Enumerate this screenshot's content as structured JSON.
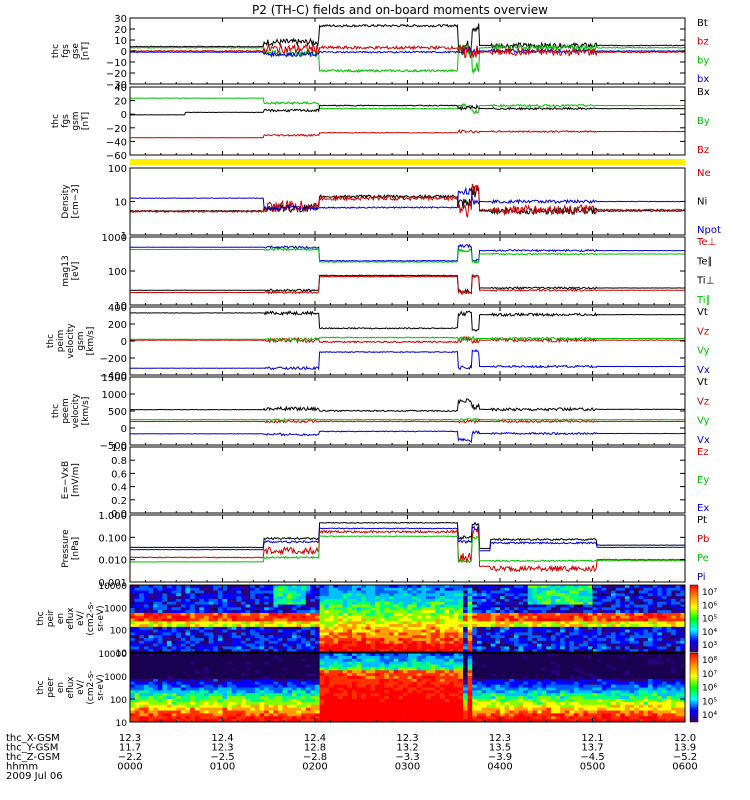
{
  "title": "P2 (TH-C) fields and on-board moments overview",
  "chart_data": {
    "type": "line",
    "x_range": [
      0,
      6
    ],
    "x_ticks": [
      0,
      1,
      2,
      3,
      4,
      5,
      6
    ],
    "panels": [
      {
        "id": "fgs_gse",
        "ylabel": [
          "thc",
          "fgs",
          "gse",
          "[nT]"
        ],
        "yticks": [
          "30",
          "20",
          "10",
          "0",
          "−10",
          "−20",
          "−30"
        ],
        "legend": [
          {
            "name": "Bt",
            "color": "#000000"
          },
          {
            "name": "bz",
            "color": "#cc0000"
          },
          {
            "name": "by",
            "color": "#00c000"
          },
          {
            "name": "bx",
            "color": "#0000cc"
          }
        ]
      },
      {
        "id": "fgs_gsm",
        "ylabel": [
          "thc",
          "fgs",
          "gsm",
          "[nT]"
        ],
        "yticks": [
          "40",
          "20",
          "0",
          "−20",
          "−40",
          "−60"
        ],
        "legend": [
          {
            "name": "Bx",
            "color": "#000000"
          },
          {
            "name": "By",
            "color": "#00c000"
          },
          {
            "name": "Bz",
            "color": "#cc0000"
          }
        ]
      },
      {
        "id": "density",
        "ylabel": [
          "Density",
          "[cm−3]"
        ],
        "yticks": [
          "100",
          "10",
          "1"
        ],
        "legend": [
          {
            "name": "Ne",
            "color": "#cc0000"
          },
          {
            "name": "Ni",
            "color": "#000000"
          },
          {
            "name": "Npot",
            "color": "#0000cc"
          }
        ]
      },
      {
        "id": "temperature",
        "ylabel": [
          "mag13",
          "[eV]"
        ],
        "yticks": [
          "1000",
          "100",
          "10"
        ],
        "legend": [
          {
            "name": "Te⊥",
            "color": "#cc0000"
          },
          {
            "name": "Te∥",
            "color": "#000000"
          },
          {
            "name": "Ti⊥",
            "color": "#000000"
          },
          {
            "name": "Ti∥",
            "color": "#00c000"
          }
        ]
      },
      {
        "id": "peim_velocity",
        "ylabel": [
          "thc",
          "peim",
          "velocity",
          "gsm",
          "[km/s]"
        ],
        "yticks": [
          "400",
          "200",
          "0",
          "−200",
          "−400"
        ],
        "legend": [
          {
            "name": "Vt",
            "color": "#000000"
          },
          {
            "name": "Vz",
            "color": "#cc0000"
          },
          {
            "name": "Vy",
            "color": "#00c000"
          },
          {
            "name": "Vx",
            "color": "#0000cc"
          }
        ]
      },
      {
        "id": "peem_velocity",
        "ylabel": [
          "thc",
          "peem",
          "velocity",
          "[km/s]"
        ],
        "yticks": [
          "1500",
          "1000",
          "500",
          "0",
          "−500"
        ],
        "legend": [
          {
            "name": "Vt",
            "color": "#000000"
          },
          {
            "name": "Vz",
            "color": "#cc0000"
          },
          {
            "name": "Vy",
            "color": "#00c000"
          },
          {
            "name": "Vx",
            "color": "#0000cc"
          }
        ]
      },
      {
        "id": "efield",
        "ylabel": [
          "E=−VxB",
          "[mV/m]"
        ],
        "yticks": [
          "1.0",
          "0.8",
          "0.6",
          "0.4",
          "0.2",
          "0.0"
        ],
        "legend": [
          {
            "name": "Ez",
            "color": "#cc0000"
          },
          {
            "name": "Ey",
            "color": "#00c000"
          },
          {
            "name": "Ex",
            "color": "#0000cc"
          }
        ]
      },
      {
        "id": "pressure",
        "ylabel": [
          "Pressure",
          "[nPa]"
        ],
        "yticks": [
          "1.000",
          "0.100",
          "0.010",
          "0.001"
        ],
        "legend": [
          {
            "name": "Pt",
            "color": "#000000"
          },
          {
            "name": "Pb",
            "color": "#cc0000"
          },
          {
            "name": "Pe",
            "color": "#00c000"
          },
          {
            "name": "Pi",
            "color": "#0000cc"
          }
        ]
      },
      {
        "id": "peir_spec",
        "ylabel": [
          "thc",
          "peir",
          "en",
          "eflux",
          "eV/",
          "(cm2-s-",
          "sr-eV)"
        ],
        "yticks": [
          "10000",
          "1000",
          "100",
          "10"
        ],
        "colorbar_ticks": [
          "10⁷",
          "10⁶",
          "10⁵",
          "10⁴",
          "10³"
        ]
      },
      {
        "id": "peer_spec",
        "ylabel": [
          "thc",
          "peer",
          "en",
          "eflux",
          "eV/",
          "(cm2-s-",
          "sr-eV)"
        ],
        "yticks": [
          "10000",
          "1000",
          "100",
          "10"
        ],
        "colorbar_ticks": [
          "10⁸",
          "10⁷",
          "10⁶",
          "10⁵",
          "10⁴"
        ]
      }
    ],
    "time_labels": {
      "row_names": [
        "thc_X-GSM",
        "thc_Y-GSM",
        "thc_Z-GSM",
        "hhmm",
        "2009 Jul 06"
      ],
      "x_gsm": [
        "12.3",
        "12.4",
        "12.4",
        "12.3",
        "12.3",
        "12.1",
        "12.0"
      ],
      "y_gsm": [
        "11.7",
        "12.3",
        "12.8",
        "13.2",
        "13.5",
        "13.7",
        "13.9"
      ],
      "z_gsm": [
        "−2.2",
        "−2.5",
        "−2.8",
        "−3.3",
        "−3.9",
        "−4.5",
        "−5.2"
      ],
      "hhmm": [
        "0000",
        "0100",
        "0200",
        "0300",
        "0400",
        "0500",
        "0600"
      ]
    }
  }
}
